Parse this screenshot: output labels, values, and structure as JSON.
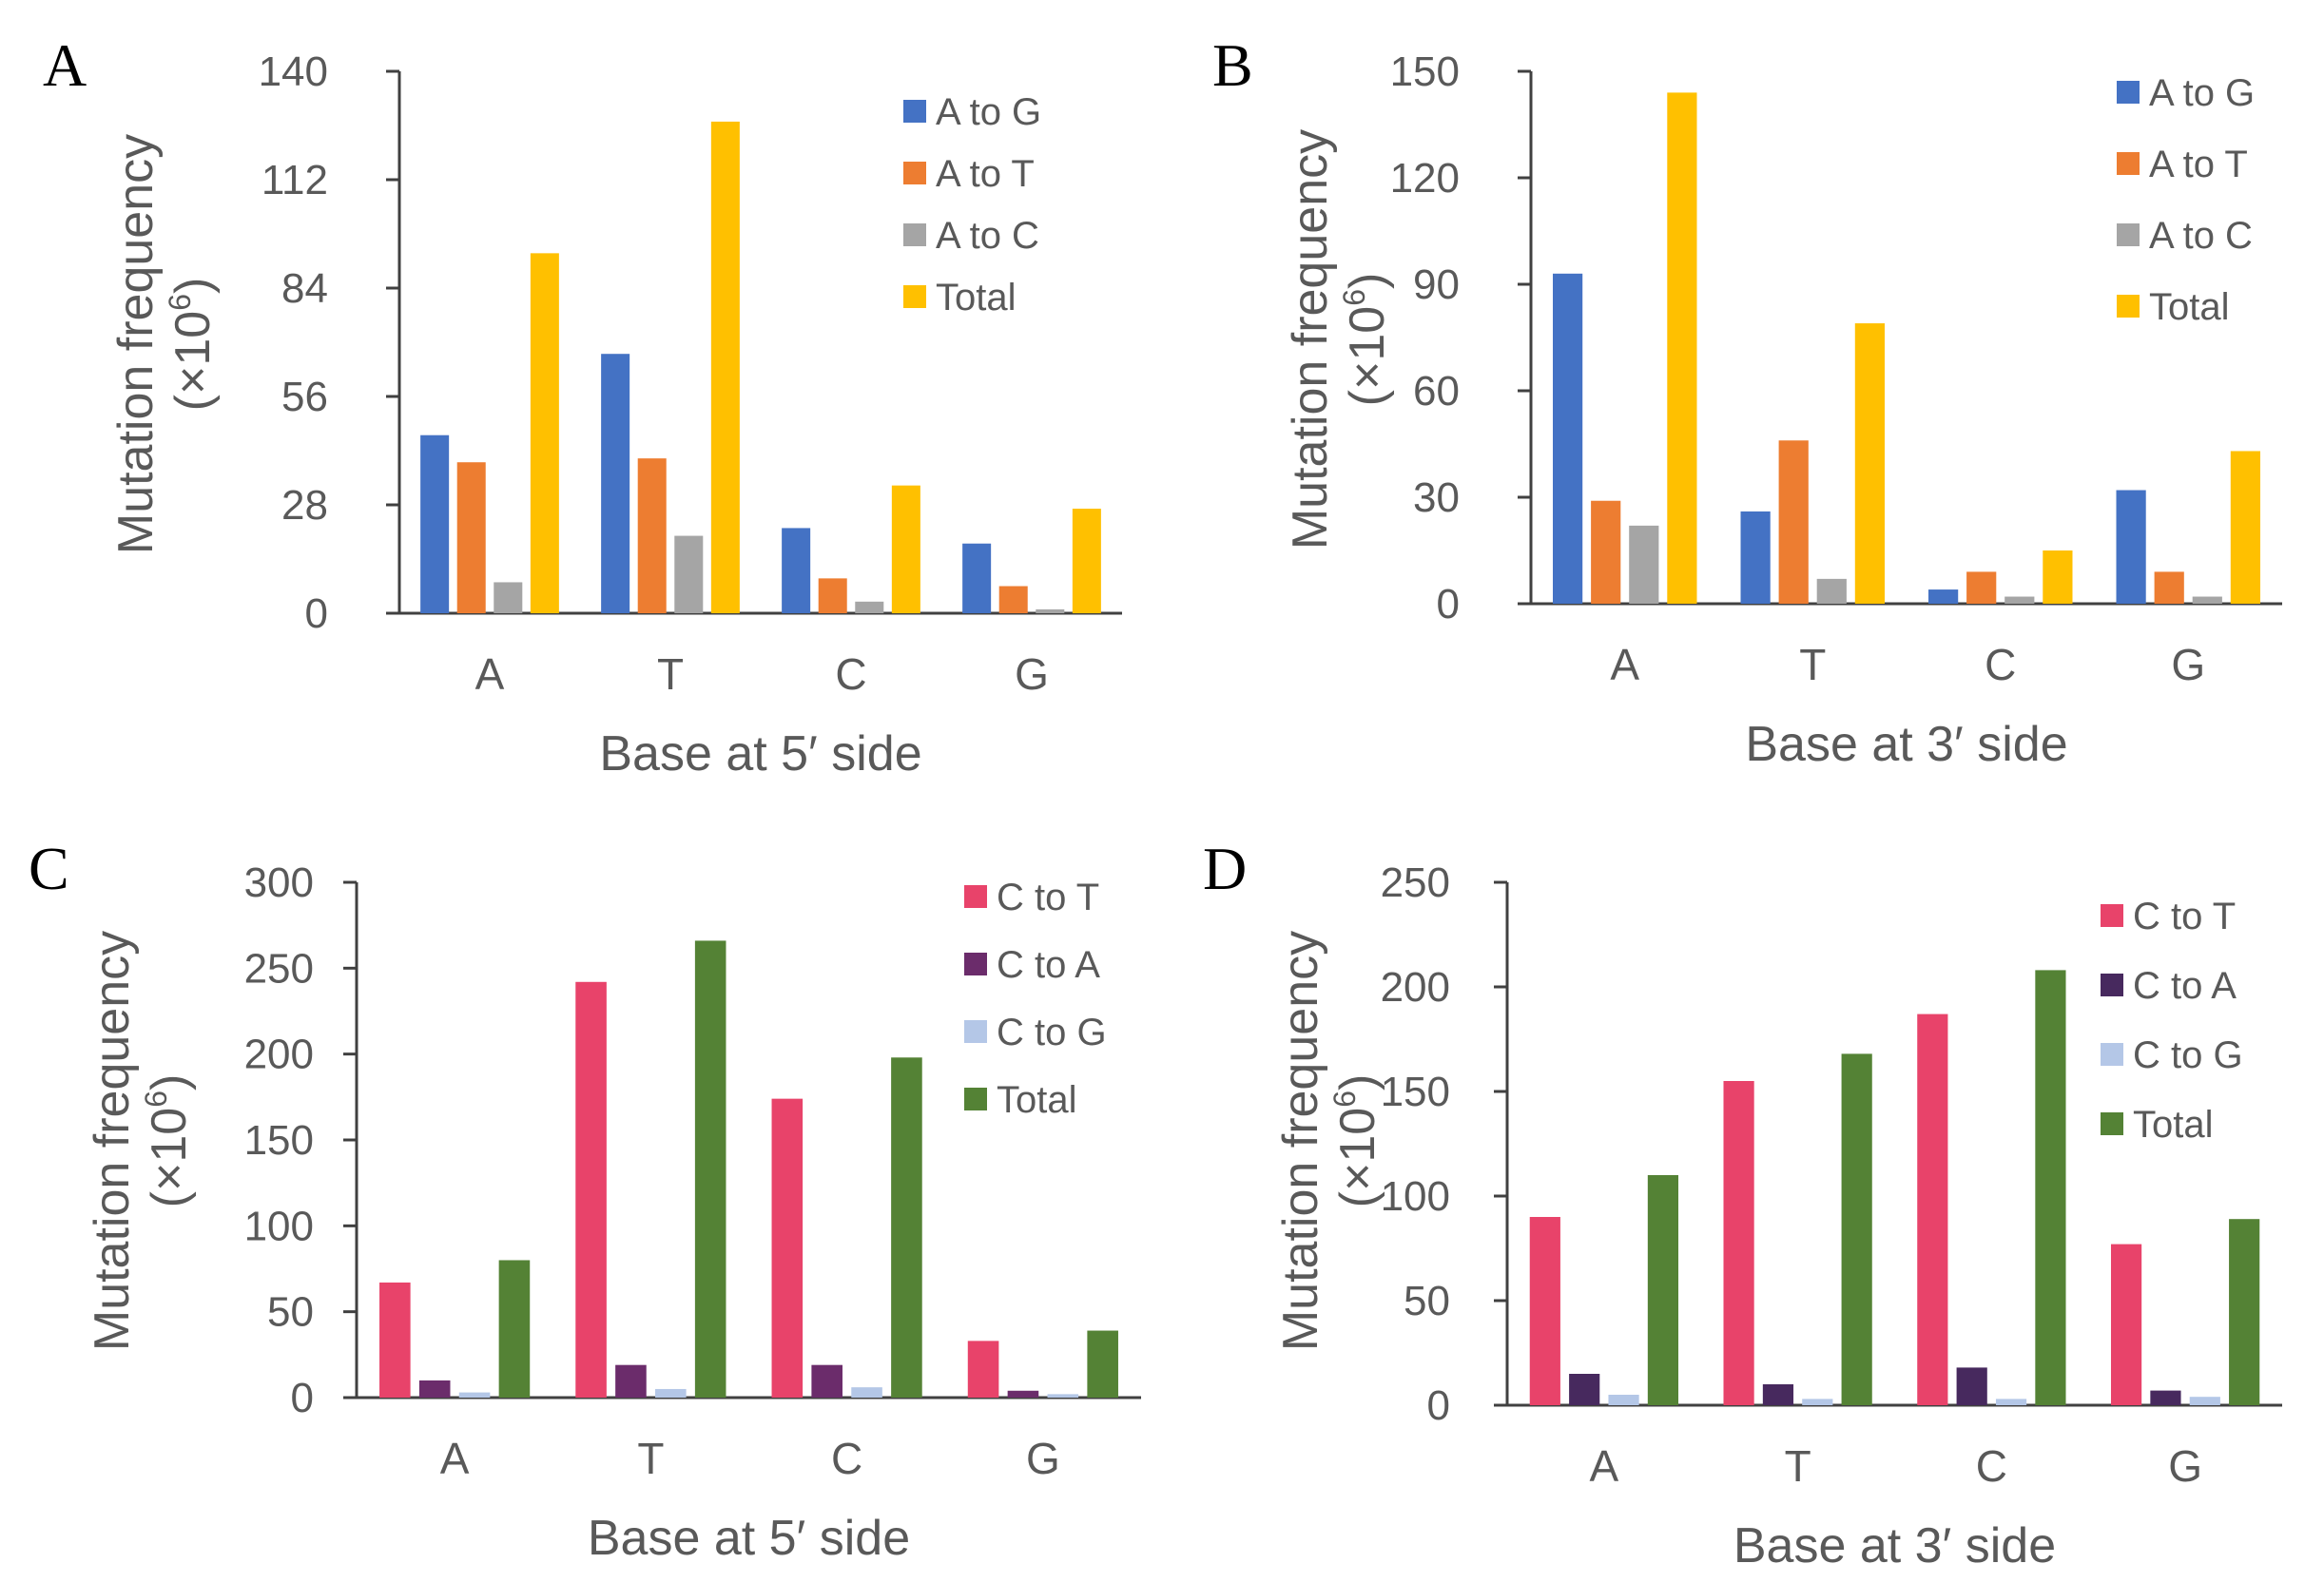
{
  "chart_data": [
    {
      "type": "bar",
      "panel_label": "A",
      "categories": [
        "A",
        "T",
        "C",
        "G"
      ],
      "series": [
        {
          "name": "A to G",
          "color": "#4472C4",
          "values": [
            46,
            67,
            22,
            18
          ]
        },
        {
          "name": "A to T",
          "color": "#ED7D31",
          "values": [
            39,
            40,
            9,
            7
          ]
        },
        {
          "name": "A to C",
          "color": "#A5A5A5",
          "values": [
            8,
            20,
            3,
            1
          ]
        },
        {
          "name": "Total",
          "color": "#FFC000",
          "values": [
            93,
            127,
            33,
            27
          ]
        }
      ],
      "title": "",
      "xlabel": "Base at 5′ side",
      "ylabel_line1": "Mutation frequency",
      "ylabel_line2": "(×10",
      "ylabel_exp": "6",
      "ylabel_close": ")",
      "ylim": [
        0,
        140
      ],
      "yticks": [
        0,
        28,
        56,
        84,
        112,
        140
      ],
      "grid": false,
      "legend": "top-right"
    },
    {
      "type": "bar",
      "panel_label": "B",
      "categories": [
        "A",
        "T",
        "C",
        "G"
      ],
      "series": [
        {
          "name": "A to G",
          "color": "#4472C4",
          "values": [
            93,
            26,
            4,
            32
          ]
        },
        {
          "name": "A to T",
          "color": "#ED7D31",
          "values": [
            29,
            46,
            9,
            9
          ]
        },
        {
          "name": "A to C",
          "color": "#A5A5A5",
          "values": [
            22,
            7,
            2,
            2
          ]
        },
        {
          "name": "Total",
          "color": "#FFC000",
          "values": [
            144,
            79,
            15,
            43
          ]
        }
      ],
      "title": "",
      "xlabel": "Base at 3′ side",
      "ylabel_line1": "Mutation frequency",
      "ylabel_line2": "(×10",
      "ylabel_exp": "6",
      "ylabel_close": ")",
      "ylim": [
        0,
        150
      ],
      "yticks": [
        0,
        30,
        60,
        90,
        120,
        150
      ],
      "grid": false,
      "legend": "top-right"
    },
    {
      "type": "bar",
      "panel_label": "C",
      "categories": [
        "A",
        "T",
        "C",
        "G"
      ],
      "series": [
        {
          "name": "C to T",
          "color": "#E8436A",
          "values": [
            67,
            242,
            174,
            33
          ]
        },
        {
          "name": "C to A",
          "color": "#6B2C6B",
          "values": [
            10,
            19,
            19,
            4
          ]
        },
        {
          "name": "C to G",
          "color": "#B4C7E7",
          "values": [
            3,
            5,
            6,
            2
          ]
        },
        {
          "name": "Total",
          "color": "#548235",
          "values": [
            80,
            266,
            198,
            39
          ]
        }
      ],
      "title": "",
      "xlabel": "Base at 5′ side",
      "ylabel_line1": "Mutation frequency",
      "ylabel_line2": "(×10",
      "ylabel_exp": "6",
      "ylabel_close": ")",
      "ylim": [
        0,
        300
      ],
      "yticks": [
        0,
        50,
        100,
        150,
        200,
        250,
        300
      ],
      "grid": false,
      "legend": "top-right"
    },
    {
      "type": "bar",
      "panel_label": "D",
      "categories": [
        "A",
        "T",
        "C",
        "G"
      ],
      "series": [
        {
          "name": "C to T",
          "color": "#E8436A",
          "values": [
            90,
            155,
            187,
            77
          ]
        },
        {
          "name": "C to A",
          "color": "#47295E",
          "values": [
            15,
            10,
            18,
            7
          ]
        },
        {
          "name": "C to G",
          "color": "#B4C7E7",
          "values": [
            5,
            3,
            3,
            4
          ]
        },
        {
          "name": "Total",
          "color": "#548235",
          "values": [
            110,
            168,
            208,
            89
          ]
        }
      ],
      "title": "",
      "xlabel": "Base at 3′ side",
      "ylabel_line1": "Mutation frequency",
      "ylabel_line2": "(×10",
      "ylabel_exp": "6",
      "ylabel_close": ")",
      "ylim": [
        0,
        250
      ],
      "yticks": [
        0,
        50,
        100,
        150,
        200,
        250
      ],
      "grid": false,
      "legend": "top-right"
    }
  ]
}
